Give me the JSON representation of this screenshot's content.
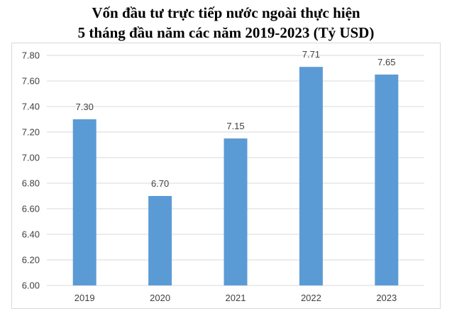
{
  "chart_data": {
    "type": "bar",
    "title_line1": "Vốn đầu tư trực tiếp nước ngoài thực hiện",
    "title_line2": "5 tháng đầu năm các năm 2019-2023 (Tỷ USD)",
    "categories": [
      "2019",
      "2020",
      "2021",
      "2022",
      "2023"
    ],
    "values": [
      7.3,
      6.7,
      7.15,
      7.71,
      7.65
    ],
    "data_labels": [
      "7.30",
      "6.70",
      "7.15",
      "7.71",
      "7.65"
    ],
    "ylim": [
      6.0,
      7.8
    ],
    "yticks": [
      "6.00",
      "6.20",
      "6.40",
      "6.60",
      "6.80",
      "7.00",
      "7.20",
      "7.40",
      "7.60",
      "7.80"
    ],
    "xlabel": "",
    "ylabel": "",
    "grid": true,
    "bar_color": "#5b9bd5",
    "grid_color": "#d9d9d9"
  }
}
